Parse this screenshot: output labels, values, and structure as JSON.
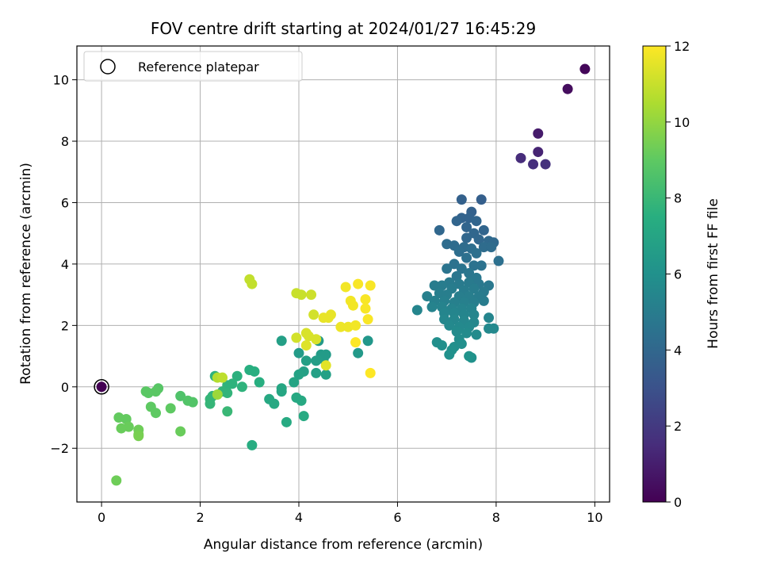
{
  "chart_data": {
    "type": "scatter",
    "title": "FOV centre drift starting at 2024/01/27 16:45:29",
    "xlabel": "Angular distance from reference (arcmin)",
    "ylabel": "Rotation from reference (arcmin)",
    "xlim": [
      -0.5,
      10.3
    ],
    "ylim": [
      -3.75,
      11.1
    ],
    "xticks": [
      0,
      2,
      4,
      6,
      8,
      10
    ],
    "yticks": [
      -2,
      0,
      2,
      4,
      6,
      8,
      10
    ],
    "grid": true,
    "legend": {
      "position": "top-left",
      "entries": [
        "Reference platepar"
      ]
    },
    "reference_point": {
      "label": "Reference platepar",
      "x": 0,
      "y": 0
    },
    "colorbar": {
      "label": "Hours from first FF file",
      "colormap": "viridis",
      "range": [
        0,
        12
      ],
      "ticks": [
        0,
        2,
        4,
        6,
        8,
        10,
        12
      ]
    },
    "points": [
      {
        "x": 9.8,
        "y": 10.35,
        "c": 0.2
      },
      {
        "x": 9.45,
        "y": 9.7,
        "c": 0.4
      },
      {
        "x": 8.85,
        "y": 8.25,
        "c": 0.9
      },
      {
        "x": 8.85,
        "y": 7.65,
        "c": 1.2
      },
      {
        "x": 8.5,
        "y": 7.45,
        "c": 1.5
      },
      {
        "x": 8.75,
        "y": 7.25,
        "c": 1.6
      },
      {
        "x": 9.0,
        "y": 7.25,
        "c": 1.7
      },
      {
        "x": 7.3,
        "y": 6.1,
        "c": 3.7
      },
      {
        "x": 7.7,
        "y": 6.1,
        "c": 3.6
      },
      {
        "x": 7.3,
        "y": 5.5,
        "c": 3.8
      },
      {
        "x": 7.5,
        "y": 5.7,
        "c": 3.7
      },
      {
        "x": 7.2,
        "y": 5.4,
        "c": 3.9
      },
      {
        "x": 7.45,
        "y": 5.5,
        "c": 3.8
      },
      {
        "x": 7.6,
        "y": 5.4,
        "c": 3.9
      },
      {
        "x": 7.4,
        "y": 5.2,
        "c": 3.9
      },
      {
        "x": 6.85,
        "y": 5.1,
        "c": 4.0
      },
      {
        "x": 7.55,
        "y": 5.0,
        "c": 4.0
      },
      {
        "x": 7.75,
        "y": 5.1,
        "c": 3.9
      },
      {
        "x": 7.4,
        "y": 4.85,
        "c": 4.0
      },
      {
        "x": 7.65,
        "y": 4.8,
        "c": 4.0
      },
      {
        "x": 7.85,
        "y": 4.75,
        "c": 4.1
      },
      {
        "x": 7.95,
        "y": 4.7,
        "c": 4.1
      },
      {
        "x": 7.0,
        "y": 4.65,
        "c": 4.2
      },
      {
        "x": 7.15,
        "y": 4.6,
        "c": 4.2
      },
      {
        "x": 7.35,
        "y": 4.55,
        "c": 4.2
      },
      {
        "x": 7.5,
        "y": 4.5,
        "c": 4.3
      },
      {
        "x": 7.75,
        "y": 4.55,
        "c": 4.2
      },
      {
        "x": 7.9,
        "y": 4.55,
        "c": 4.2
      },
      {
        "x": 7.25,
        "y": 4.4,
        "c": 4.3
      },
      {
        "x": 7.6,
        "y": 4.35,
        "c": 4.4
      },
      {
        "x": 8.05,
        "y": 4.1,
        "c": 4.4
      },
      {
        "x": 7.4,
        "y": 4.2,
        "c": 4.4
      },
      {
        "x": 7.15,
        "y": 4.0,
        "c": 4.5
      },
      {
        "x": 7.55,
        "y": 3.95,
        "c": 4.5
      },
      {
        "x": 7.0,
        "y": 3.85,
        "c": 4.6
      },
      {
        "x": 7.3,
        "y": 3.85,
        "c": 4.6
      },
      {
        "x": 7.7,
        "y": 3.95,
        "c": 4.5
      },
      {
        "x": 7.45,
        "y": 3.7,
        "c": 4.7
      },
      {
        "x": 7.2,
        "y": 3.6,
        "c": 4.7
      },
      {
        "x": 7.6,
        "y": 3.55,
        "c": 4.8
      },
      {
        "x": 7.05,
        "y": 3.4,
        "c": 4.9
      },
      {
        "x": 7.25,
        "y": 3.35,
        "c": 4.9
      },
      {
        "x": 7.45,
        "y": 3.4,
        "c": 4.9
      },
      {
        "x": 7.65,
        "y": 3.35,
        "c": 4.8
      },
      {
        "x": 7.85,
        "y": 3.3,
        "c": 4.8
      },
      {
        "x": 6.75,
        "y": 3.3,
        "c": 5.0
      },
      {
        "x": 6.9,
        "y": 3.3,
        "c": 5.0
      },
      {
        "x": 7.1,
        "y": 3.2,
        "c": 5.0
      },
      {
        "x": 7.35,
        "y": 3.15,
        "c": 5.0
      },
      {
        "x": 7.55,
        "y": 3.2,
        "c": 5.0
      },
      {
        "x": 7.75,
        "y": 3.1,
        "c": 4.9
      },
      {
        "x": 6.85,
        "y": 3.05,
        "c": 5.1
      },
      {
        "x": 7.0,
        "y": 3.0,
        "c": 5.1
      },
      {
        "x": 7.25,
        "y": 2.95,
        "c": 5.1
      },
      {
        "x": 7.45,
        "y": 2.95,
        "c": 5.1
      },
      {
        "x": 7.65,
        "y": 2.95,
        "c": 5.0
      },
      {
        "x": 6.6,
        "y": 2.95,
        "c": 5.2
      },
      {
        "x": 6.75,
        "y": 2.8,
        "c": 5.2
      },
      {
        "x": 6.95,
        "y": 2.8,
        "c": 5.2
      },
      {
        "x": 7.15,
        "y": 2.75,
        "c": 5.2
      },
      {
        "x": 7.35,
        "y": 2.75,
        "c": 5.2
      },
      {
        "x": 7.55,
        "y": 2.75,
        "c": 5.1
      },
      {
        "x": 7.75,
        "y": 2.8,
        "c": 5.0
      },
      {
        "x": 6.7,
        "y": 2.6,
        "c": 5.3
      },
      {
        "x": 6.9,
        "y": 2.6,
        "c": 5.3
      },
      {
        "x": 7.1,
        "y": 2.55,
        "c": 5.3
      },
      {
        "x": 7.3,
        "y": 2.55,
        "c": 5.3
      },
      {
        "x": 7.5,
        "y": 2.55,
        "c": 5.3
      },
      {
        "x": 6.4,
        "y": 2.5,
        "c": 5.4
      },
      {
        "x": 6.95,
        "y": 2.4,
        "c": 5.4
      },
      {
        "x": 7.15,
        "y": 2.4,
        "c": 5.4
      },
      {
        "x": 7.35,
        "y": 2.35,
        "c": 5.4
      },
      {
        "x": 7.55,
        "y": 2.35,
        "c": 5.4
      },
      {
        "x": 6.95,
        "y": 2.2,
        "c": 5.5
      },
      {
        "x": 7.15,
        "y": 2.2,
        "c": 5.5
      },
      {
        "x": 7.35,
        "y": 2.15,
        "c": 5.5
      },
      {
        "x": 7.55,
        "y": 2.1,
        "c": 5.5
      },
      {
        "x": 7.85,
        "y": 2.25,
        "c": 5.4
      },
      {
        "x": 7.05,
        "y": 2.0,
        "c": 5.6
      },
      {
        "x": 7.25,
        "y": 1.95,
        "c": 5.6
      },
      {
        "x": 7.45,
        "y": 1.95,
        "c": 5.6
      },
      {
        "x": 7.2,
        "y": 1.8,
        "c": 5.7
      },
      {
        "x": 7.4,
        "y": 1.75,
        "c": 5.7
      },
      {
        "x": 7.6,
        "y": 1.7,
        "c": 5.7
      },
      {
        "x": 7.85,
        "y": 1.9,
        "c": 5.6
      },
      {
        "x": 7.95,
        "y": 1.9,
        "c": 5.6
      },
      {
        "x": 7.25,
        "y": 1.55,
        "c": 5.8
      },
      {
        "x": 6.8,
        "y": 1.45,
        "c": 5.9
      },
      {
        "x": 7.3,
        "y": 1.4,
        "c": 5.9
      },
      {
        "x": 6.9,
        "y": 1.35,
        "c": 5.9
      },
      {
        "x": 7.15,
        "y": 1.3,
        "c": 5.9
      },
      {
        "x": 7.1,
        "y": 1.2,
        "c": 6.0
      },
      {
        "x": 7.05,
        "y": 1.05,
        "c": 6.0
      },
      {
        "x": 7.5,
        "y": 0.95,
        "c": 6.0
      },
      {
        "x": 7.45,
        "y": 1.0,
        "c": 6.1
      },
      {
        "x": 5.4,
        "y": 1.5,
        "c": 6.3
      },
      {
        "x": 5.2,
        "y": 1.1,
        "c": 6.4
      },
      {
        "x": 4.4,
        "y": 1.5,
        "c": 6.4
      },
      {
        "x": 4.45,
        "y": 1.05,
        "c": 6.5
      },
      {
        "x": 4.5,
        "y": 0.9,
        "c": 6.6
      },
      {
        "x": 4.35,
        "y": 0.85,
        "c": 6.6
      },
      {
        "x": 4.15,
        "y": 0.85,
        "c": 6.7
      },
      {
        "x": 4.55,
        "y": 1.05,
        "c": 6.5
      },
      {
        "x": 4.0,
        "y": 1.1,
        "c": 6.5
      },
      {
        "x": 4.1,
        "y": 0.5,
        "c": 6.8
      },
      {
        "x": 4.0,
        "y": 0.4,
        "c": 6.9
      },
      {
        "x": 4.35,
        "y": 0.45,
        "c": 6.8
      },
      {
        "x": 4.55,
        "y": 0.4,
        "c": 6.8
      },
      {
        "x": 3.65,
        "y": 1.5,
        "c": 6.7
      },
      {
        "x": 3.9,
        "y": 0.15,
        "c": 7.0
      },
      {
        "x": 3.65,
        "y": -0.15,
        "c": 7.1
      },
      {
        "x": 3.65,
        "y": -0.05,
        "c": 7.1
      },
      {
        "x": 3.4,
        "y": -0.4,
        "c": 7.2
      },
      {
        "x": 3.5,
        "y": -0.55,
        "c": 7.2
      },
      {
        "x": 3.95,
        "y": -0.35,
        "c": 7.2
      },
      {
        "x": 4.05,
        "y": -0.45,
        "c": 7.2
      },
      {
        "x": 4.1,
        "y": -0.95,
        "c": 7.3
      },
      {
        "x": 3.75,
        "y": -1.15,
        "c": 7.3
      },
      {
        "x": 3.05,
        "y": -1.9,
        "c": 7.4
      },
      {
        "x": 3.0,
        "y": 0.55,
        "c": 7.5
      },
      {
        "x": 3.1,
        "y": 0.5,
        "c": 7.5
      },
      {
        "x": 3.2,
        "y": 0.15,
        "c": 7.5
      },
      {
        "x": 2.75,
        "y": 0.35,
        "c": 7.6
      },
      {
        "x": 2.3,
        "y": 0.35,
        "c": 7.7
      },
      {
        "x": 2.65,
        "y": 0.1,
        "c": 7.7
      },
      {
        "x": 2.55,
        "y": 0.05,
        "c": 7.7
      },
      {
        "x": 2.85,
        "y": 0.0,
        "c": 7.7
      },
      {
        "x": 2.45,
        "y": -0.15,
        "c": 7.8
      },
      {
        "x": 2.55,
        "y": -0.2,
        "c": 7.8
      },
      {
        "x": 2.25,
        "y": -0.3,
        "c": 7.8
      },
      {
        "x": 2.2,
        "y": -0.4,
        "c": 7.9
      },
      {
        "x": 2.2,
        "y": -0.55,
        "c": 7.9
      },
      {
        "x": 2.55,
        "y": -0.8,
        "c": 8.0
      },
      {
        "x": 1.6,
        "y": -0.3,
        "c": 8.6
      },
      {
        "x": 1.75,
        "y": -0.45,
        "c": 8.7
      },
      {
        "x": 1.85,
        "y": -0.5,
        "c": 8.7
      },
      {
        "x": 1.15,
        "y": -0.05,
        "c": 8.8
      },
      {
        "x": 1.1,
        "y": -0.15,
        "c": 8.9
      },
      {
        "x": 0.95,
        "y": -0.2,
        "c": 8.9
      },
      {
        "x": 0.9,
        "y": -0.15,
        "c": 8.9
      },
      {
        "x": 1.1,
        "y": -0.85,
        "c": 9.0
      },
      {
        "x": 1.4,
        "y": -0.7,
        "c": 9.0
      },
      {
        "x": 1.0,
        "y": -0.65,
        "c": 9.0
      },
      {
        "x": 0.5,
        "y": -1.05,
        "c": 9.1
      },
      {
        "x": 0.35,
        "y": -1.0,
        "c": 9.1
      },
      {
        "x": 0.55,
        "y": -1.3,
        "c": 9.2
      },
      {
        "x": 0.4,
        "y": -1.35,
        "c": 9.2
      },
      {
        "x": 0.75,
        "y": -1.4,
        "c": 9.3
      },
      {
        "x": 0.75,
        "y": -1.55,
        "c": 9.4
      },
      {
        "x": 0.75,
        "y": -1.6,
        "c": 9.5
      },
      {
        "x": 1.6,
        "y": -1.45,
        "c": 9.2
      },
      {
        "x": 0.3,
        "y": -3.05,
        "c": 9.3
      },
      {
        "x": 2.35,
        "y": -0.25,
        "c": 10.2
      },
      {
        "x": 2.35,
        "y": 0.3,
        "c": 10.6
      },
      {
        "x": 2.45,
        "y": 0.3,
        "c": 10.8
      },
      {
        "x": 3.0,
        "y": 3.5,
        "c": 10.9
      },
      {
        "x": 3.05,
        "y": 3.35,
        "c": 10.9
      },
      {
        "x": 3.95,
        "y": 3.05,
        "c": 11.0
      },
      {
        "x": 4.05,
        "y": 3.0,
        "c": 11.0
      },
      {
        "x": 4.25,
        "y": 3.0,
        "c": 11.1
      },
      {
        "x": 4.3,
        "y": 2.35,
        "c": 11.2
      },
      {
        "x": 3.95,
        "y": 1.6,
        "c": 11.2
      },
      {
        "x": 4.15,
        "y": 1.75,
        "c": 11.3
      },
      {
        "x": 4.2,
        "y": 1.65,
        "c": 11.3
      },
      {
        "x": 4.35,
        "y": 1.55,
        "c": 11.3
      },
      {
        "x": 4.15,
        "y": 1.35,
        "c": 11.4
      },
      {
        "x": 4.55,
        "y": 0.7,
        "c": 11.5
      },
      {
        "x": 4.5,
        "y": 2.25,
        "c": 11.6
      },
      {
        "x": 4.6,
        "y": 2.25,
        "c": 11.6
      },
      {
        "x": 4.65,
        "y": 2.35,
        "c": 11.6
      },
      {
        "x": 4.85,
        "y": 1.95,
        "c": 11.7
      },
      {
        "x": 5.0,
        "y": 1.95,
        "c": 11.7
      },
      {
        "x": 5.15,
        "y": 2.0,
        "c": 11.8
      },
      {
        "x": 5.1,
        "y": 2.65,
        "c": 11.8
      },
      {
        "x": 5.05,
        "y": 2.8,
        "c": 11.8
      },
      {
        "x": 4.95,
        "y": 3.25,
        "c": 11.8
      },
      {
        "x": 5.2,
        "y": 3.35,
        "c": 11.9
      },
      {
        "x": 5.45,
        "y": 3.3,
        "c": 11.9
      },
      {
        "x": 5.35,
        "y": 2.85,
        "c": 11.9
      },
      {
        "x": 5.35,
        "y": 2.55,
        "c": 11.9
      },
      {
        "x": 5.4,
        "y": 2.2,
        "c": 11.9
      },
      {
        "x": 5.15,
        "y": 1.45,
        "c": 12.0
      },
      {
        "x": 5.45,
        "y": 0.45,
        "c": 12.0
      }
    ]
  }
}
